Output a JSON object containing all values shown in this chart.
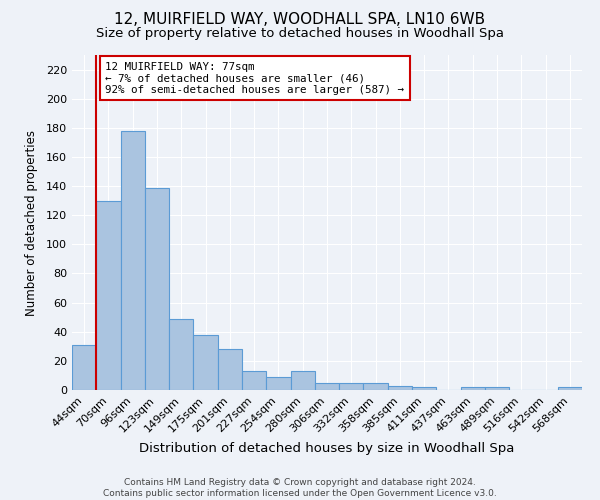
{
  "title_line1": "12, MUIRFIELD WAY, WOODHALL SPA, LN10 6WB",
  "title_line2": "Size of property relative to detached houses in Woodhall Spa",
  "xlabel": "Distribution of detached houses by size in Woodhall Spa",
  "ylabel": "Number of detached properties",
  "categories": [
    "44sqm",
    "70sqm",
    "96sqm",
    "123sqm",
    "149sqm",
    "175sqm",
    "201sqm",
    "227sqm",
    "254sqm",
    "280sqm",
    "306sqm",
    "332sqm",
    "358sqm",
    "385sqm",
    "411sqm",
    "437sqm",
    "463sqm",
    "489sqm",
    "516sqm",
    "542sqm",
    "568sqm"
  ],
  "values": [
    31,
    130,
    178,
    139,
    49,
    38,
    28,
    13,
    9,
    13,
    5,
    5,
    5,
    3,
    2,
    0,
    2,
    2,
    0,
    0,
    2
  ],
  "bar_color": "#aac4e0",
  "bar_edge_color": "#5b9bd5",
  "annotation_line1": "12 MUIRFIELD WAY: 77sqm",
  "annotation_line2": "← 7% of detached houses are smaller (46)",
  "annotation_line3": "92% of semi-detached houses are larger (587) →",
  "annotation_box_color": "#ffffff",
  "annotation_box_edge": "#cc0000",
  "marker_line_color": "#cc0000",
  "ylim": [
    0,
    230
  ],
  "yticks": [
    0,
    20,
    40,
    60,
    80,
    100,
    120,
    140,
    160,
    180,
    200,
    220
  ],
  "footer_line1": "Contains HM Land Registry data © Crown copyright and database right 2024.",
  "footer_line2": "Contains public sector information licensed under the Open Government Licence v3.0.",
  "background_color": "#eef2f8",
  "grid_color": "#ffffff",
  "title1_fontsize": 11,
  "title2_fontsize": 9.5,
  "xlabel_fontsize": 9.5,
  "ylabel_fontsize": 8.5,
  "tick_fontsize": 8,
  "annotation_fontsize": 7.8,
  "footer_fontsize": 6.5
}
